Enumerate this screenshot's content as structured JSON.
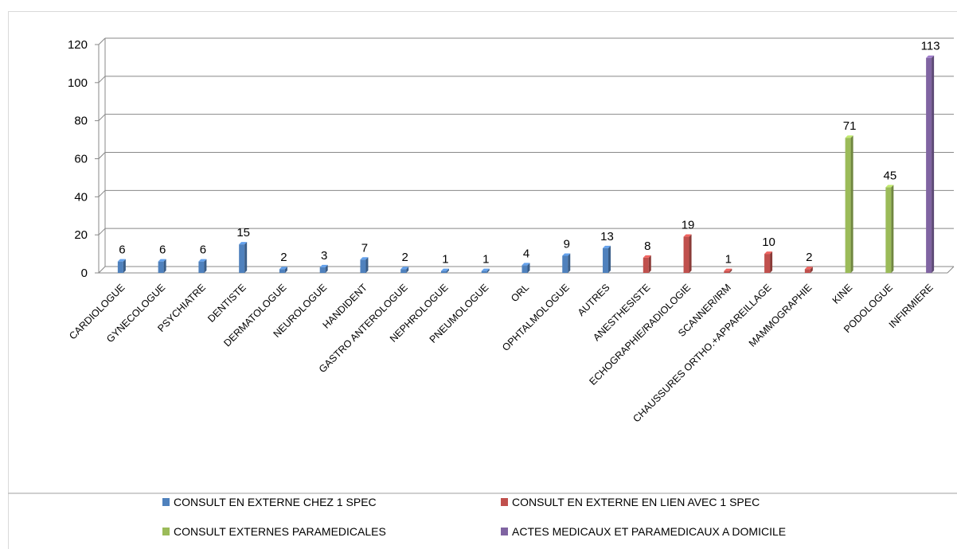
{
  "chart_data": {
    "type": "bar",
    "style": "3d-column",
    "title": "",
    "xlabel": "",
    "ylabel": "",
    "ylim": [
      0,
      120
    ],
    "yticks": [
      0,
      20,
      40,
      60,
      80,
      100,
      120
    ],
    "grid": true,
    "legend_position": "bottom",
    "categories": [
      "CARDIOLOGUE",
      "GYNECOLOGUE",
      "PSYCHIATRE",
      "DENTISTE",
      "DERMATOLOGUE",
      "NEUROLOGUE",
      "HANDIDENT",
      "GASTRO ANTEROLOGUE",
      "NEPHROLOGUE",
      "PNEUMOLOGUE",
      "ORL",
      "OPHTALMOLOGUE",
      "AUTRES",
      "ANESTHESISTE",
      "ECHOGRAPHIE/RADIOLOGIE",
      "SCANNER/IRM",
      "CHAUSSURES ORTHO.+APPAREILLAGE",
      "MAMMOGRAPHIE",
      "KINE",
      "PODOLOGUE",
      "INFIRMIERE"
    ],
    "values": [
      6,
      6,
      6,
      15,
      2,
      3,
      7,
      2,
      1,
      1,
      4,
      9,
      13,
      8,
      19,
      1,
      10,
      2,
      71,
      45,
      113
    ],
    "groups": [
      0,
      0,
      0,
      0,
      0,
      0,
      0,
      0,
      0,
      0,
      0,
      0,
      0,
      1,
      1,
      1,
      1,
      1,
      2,
      2,
      3
    ],
    "series": [
      {
        "name": "CONSULT EN EXTERNE CHEZ 1 SPEC",
        "color": "#4f81bd"
      },
      {
        "name": "CONSULT EN EXTERNE EN LIEN AVEC 1 SPEC",
        "color": "#c0504d"
      },
      {
        "name": "CONSULT EXTERNES PARAMEDICALES",
        "color": "#9bbb59"
      },
      {
        "name": "ACTES MEDICAUX ET PARAMEDICAUX A DOMICILE",
        "color": "#8064a2"
      }
    ]
  }
}
